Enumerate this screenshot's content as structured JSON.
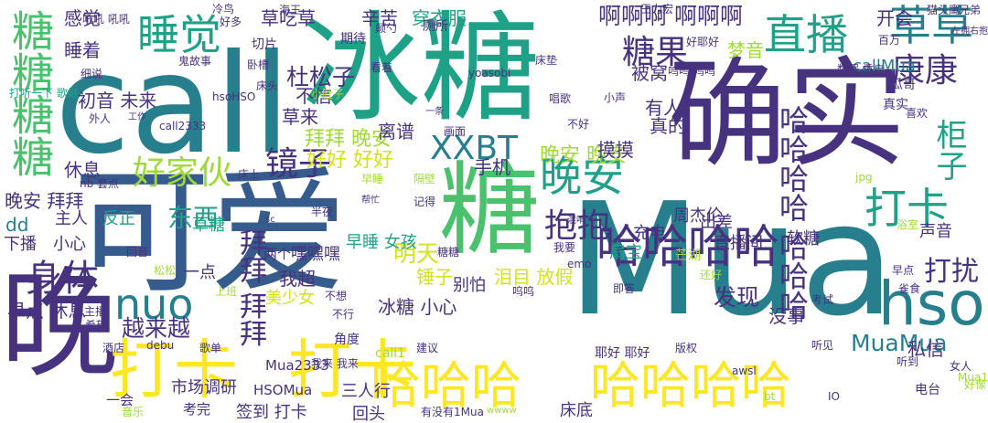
{
  "palette": {
    "dark_purple": "#46327e",
    "blue": "#365c8d",
    "teal": "#277f8e",
    "green_teal": "#1fa187",
    "green": "#4ac16d",
    "light_green": "#a0da39",
    "yellow": "#d2e21b",
    "bright_yellow": "#fde725"
  },
  "words": [
    {
      "text": "冰糖",
      "c": "green_teal"
    },
    {
      "text": "确实",
      "c": "dark_purple"
    },
    {
      "text": "call",
      "c": "teal"
    },
    {
      "text": "可爱",
      "c": "blue"
    },
    {
      "text": "Mua",
      "c": "teal"
    },
    {
      "text": "糖",
      "c": "green"
    },
    {
      "text": "晚",
      "c": "dark_purple"
    },
    {
      "text": "打卡",
      "c": "bright_yellow"
    },
    {
      "text": "打卡",
      "c": "bright_yellow"
    },
    {
      "text": "哈哈哈",
      "c": "bright_yellow"
    },
    {
      "text": "哈哈哈哈",
      "c": "bright_yellow"
    },
    {
      "text": "糖糖糖糖",
      "c": "green"
    },
    {
      "text": "睡觉",
      "c": "green_teal"
    },
    {
      "text": "草草",
      "c": "teal"
    },
    {
      "text": "直播",
      "c": "green_teal"
    },
    {
      "text": "糖果",
      "c": "dark_purple"
    },
    {
      "text": "康康",
      "c": "dark_purple"
    },
    {
      "text": "好家伙",
      "c": "light_green"
    },
    {
      "text": "镜子",
      "c": "dark_purple"
    },
    {
      "text": "晚安",
      "c": "green_teal"
    },
    {
      "text": "XXBT",
      "c": "teal"
    },
    {
      "text": "nuo",
      "c": "teal"
    },
    {
      "text": "hso",
      "c": "teal"
    },
    {
      "text": "哈哈哈哈",
      "c": "dark_purple"
    },
    {
      "text": "打卡",
      "c": "green_teal"
    },
    {
      "text": "抱抱",
      "c": "dark_purple"
    },
    {
      "text": "打扰",
      "c": "dark_purple"
    },
    {
      "text": "身体",
      "c": "dark_purple"
    },
    {
      "text": "拜拜 拜拜",
      "c": "dark_purple"
    },
    {
      "text": "哈哈哈哈 哈哈哈",
      "c": "dark_purple"
    },
    {
      "text": "柜子",
      "c": "green_teal"
    },
    {
      "text": "啊啊啊 啊啊啊",
      "c": "dark_purple"
    },
    {
      "text": "杜松子",
      "c": "dark_purple"
    },
    {
      "text": "越来越",
      "c": "dark_purple"
    },
    {
      "text": "MuaMua",
      "c": "teal"
    },
    {
      "text": "东西",
      "c": "green_teal"
    },
    {
      "text": "发现",
      "c": "dark_purple"
    },
    {
      "text": "明天",
      "c": "yellow"
    },
    {
      "text": "好好 好好",
      "c": "yellow"
    },
    {
      "text": "拜拜 晚安",
      "c": "light_green"
    },
    {
      "text": "晚安 晚安",
      "c": "light_green"
    },
    {
      "text": "草吃草",
      "c": "dark_purple"
    },
    {
      "text": "辛苦",
      "c": "dark_purple"
    },
    {
      "text": "穿衣服",
      "c": "green_teal"
    },
    {
      "text": "感觉",
      "c": "dark_purple"
    },
    {
      "text": "开会",
      "c": "dark_purple"
    },
    {
      "text": "梦音",
      "c": "light_green"
    },
    {
      "text": "不信",
      "c": "dark_purple"
    },
    {
      "text": "睡着",
      "c": "dark_purple"
    },
    {
      "text": "草来",
      "c": "dark_purple"
    },
    {
      "text": "callMua",
      "c": "teal"
    },
    {
      "text": "手机",
      "c": "dark_purple"
    },
    {
      "text": "被窝",
      "c": "dark_purple"
    },
    {
      "text": "休息",
      "c": "dark_purple"
    },
    {
      "text": "晚安 拜拜",
      "c": "dark_purple"
    },
    {
      "text": "摸摸",
      "c": "dark_purple"
    },
    {
      "text": "真的",
      "c": "dark_purple"
    },
    {
      "text": "有人",
      "c": "dark_purple"
    },
    {
      "text": "离谱",
      "c": "dark_purple"
    },
    {
      "text": "初音 未来",
      "c": "dark_purple"
    },
    {
      "text": "早点 休息",
      "c": "dark_purple"
    },
    {
      "text": "冰糖 小心",
      "c": "dark_purple"
    },
    {
      "text": "锤子",
      "c": "yellow"
    },
    {
      "text": "我超",
      "c": "dark_purple"
    },
    {
      "text": "草糖",
      "c": "green_teal"
    },
    {
      "text": "充电",
      "c": "dark_purple"
    },
    {
      "text": "出差",
      "c": "dark_purple"
    },
    {
      "text": "直播间",
      "c": "dark_purple"
    },
    {
      "text": "软糖",
      "c": "dark_purple"
    },
    {
      "text": "声音",
      "c": "dark_purple"
    },
    {
      "text": "没事",
      "c": "dark_purple"
    },
    {
      "text": "私信",
      "c": "dark_purple"
    },
    {
      "text": "泪目 放假",
      "c": "yellow"
    },
    {
      "text": "嘿嘿嘿",
      "c": "dark_purple"
    },
    {
      "text": "别怕",
      "c": "dark_purple"
    },
    {
      "text": "早睡 女孩",
      "c": "green_teal"
    },
    {
      "text": "扇宝",
      "c": "green_teal"
    },
    {
      "text": "周杰伦",
      "c": "dark_purple"
    },
    {
      "text": "主人",
      "c": "dark_purple"
    },
    {
      "text": "反正",
      "c": "green_teal"
    },
    {
      "text": "下播",
      "c": "dark_purple"
    },
    {
      "text": "小心",
      "c": "dark_purple"
    },
    {
      "text": "一点",
      "c": "dark_purple"
    },
    {
      "text": "两个",
      "c": "dark_purple"
    },
    {
      "text": "美少女",
      "c": "yellow"
    },
    {
      "text": "三人行",
      "c": "dark_purple"
    },
    {
      "text": "回头",
      "c": "dark_purple"
    },
    {
      "text": "签到 打卡",
      "c": "dark_purple"
    },
    {
      "text": "市场调研",
      "c": "dark_purple"
    },
    {
      "text": "Mua2333",
      "c": "dark_purple"
    },
    {
      "text": "HSOMua",
      "c": "dark_purple"
    },
    {
      "text": "床底",
      "c": "dark_purple"
    },
    {
      "text": "考完",
      "c": "dark_purple"
    },
    {
      "text": "一会",
      "c": "dark_purple"
    },
    {
      "text": "歌单",
      "c": "dark_purple"
    },
    {
      "text": "酒店",
      "c": "dark_purple"
    },
    {
      "text": "debu",
      "c": "dark_purple"
    },
    {
      "text": "awsl",
      "c": "dark_purple"
    },
    {
      "text": "电台",
      "c": "dark_purple"
    },
    {
      "text": "好像",
      "c": "light_green"
    },
    {
      "text": "女人",
      "c": "dark_purple"
    },
    {
      "text": "Mua1",
      "c": "light_green"
    },
    {
      "text": "听到",
      "c": "dark_purple"
    },
    {
      "text": "听见",
      "c": "dark_purple"
    },
    {
      "text": "耶好 耶好",
      "c": "dark_purple"
    },
    {
      "text": "版权",
      "c": "dark_purple"
    },
    {
      "text": "还好",
      "c": "light_green"
    },
    {
      "text": "考试",
      "c": "dark_purple"
    },
    {
      "text": "早点",
      "c": "dark_purple"
    },
    {
      "text": "即答",
      "c": "dark_purple"
    },
    {
      "text": "芒湖",
      "c": "light_green"
    },
    {
      "text": "我要",
      "c": "dark_purple"
    },
    {
      "text": "糖糖",
      "c": "dark_purple"
    },
    {
      "text": "emo",
      "c": "dark_purple"
    },
    {
      "text": "呜呜",
      "c": "dark_purple"
    },
    {
      "text": "瓜哥",
      "c": "dark_purple"
    },
    {
      "text": "喜欢",
      "c": "dark_purple"
    },
    {
      "text": "真实",
      "c": "dark_purple"
    },
    {
      "text": "百万",
      "c": "dark_purple"
    },
    {
      "text": "数据 重启",
      "c": "dark_purple"
    },
    {
      "text": "呜呜 呜呜",
      "c": "dark_purple"
    },
    {
      "text": "小声",
      "c": "dark_purple"
    },
    {
      "text": "唱歌",
      "c": "dark_purple"
    },
    {
      "text": "好耶好",
      "c": "dark_purple"
    },
    {
      "text": "王力宏",
      "c": "dark_purple"
    },
    {
      "text": "兄弟",
      "c": "dark_purple"
    },
    {
      "text": "左拥右抱",
      "c": "dark_purple"
    },
    {
      "text": "猫头鹰",
      "c": "dark_purple"
    },
    {
      "text": "海王",
      "c": "dark_purple"
    },
    {
      "text": "冷鸟",
      "c": "dark_purple"
    },
    {
      "text": "好多",
      "c": "dark_purple"
    },
    {
      "text": "颠勺",
      "c": "dark_purple"
    },
    {
      "text": "厕所",
      "c": "dark_purple"
    },
    {
      "text": "期待",
      "c": "dark_purple"
    },
    {
      "text": "切片",
      "c": "dark_purple"
    },
    {
      "text": "卧槽",
      "c": "dark_purple"
    },
    {
      "text": "看着",
      "c": "dark_purple"
    },
    {
      "text": "床头",
      "c": "dark_purple"
    },
    {
      "text": "床垫",
      "c": "dark_purple"
    },
    {
      "text": "yoasobi",
      "c": "dark_purple"
    },
    {
      "text": "鬼故事",
      "c": "dark_purple"
    },
    {
      "text": "细说",
      "c": "dark_purple"
    },
    {
      "text": "吼吼 吼吼",
      "c": "dark_purple"
    },
    {
      "text": "小肚子",
      "c": "light_green"
    },
    {
      "text": "打听一下 歌姬",
      "c": "green_teal"
    },
    {
      "text": "外人",
      "c": "dark_purple"
    },
    {
      "text": "工作",
      "c": "dark_purple"
    },
    {
      "text": "call2333",
      "c": "dark_purple"
    },
    {
      "text": "一条",
      "c": "dark_purple"
    },
    {
      "text": "画面",
      "c": "dark_purple"
    },
    {
      "text": "不好",
      "c": "dark_purple"
    },
    {
      "text": "hsoHSO",
      "c": "dark_purple"
    },
    {
      "text": "床上",
      "c": "dark_purple"
    },
    {
      "text": "早睡",
      "c": "light_green"
    },
    {
      "text": "隔壁",
      "c": "light_green"
    },
    {
      "text": "记得",
      "c": "dark_purple"
    },
    {
      "text": "帮忙",
      "c": "dark_purple"
    },
    {
      "text": "混响",
      "c": "dark_purple"
    },
    {
      "text": "nb 套点",
      "c": "dark_purple"
    },
    {
      "text": "dd",
      "c": "teal"
    },
    {
      "text": "半夜",
      "c": "dark_purple"
    },
    {
      "text": "sc",
      "c": "dark_purple"
    },
    {
      "text": "回音",
      "c": "dark_purple"
    },
    {
      "text": "松松",
      "c": "light_green"
    },
    {
      "text": "不想",
      "c": "dark_purple"
    },
    {
      "text": "上班",
      "c": "light_green"
    },
    {
      "text": "角度",
      "c": "dark_purple"
    },
    {
      "text": "建议",
      "c": "dark_purple"
    },
    {
      "text": "call1",
      "c": "light_green"
    },
    {
      "text": "我来 我来",
      "c": "dark_purple"
    },
    {
      "text": "有没有1Mua",
      "c": "dark_purple"
    },
    {
      "text": "wwww",
      "c": "light_green"
    },
    {
      "text": "IO",
      "c": "dark_purple"
    },
    {
      "text": "bt",
      "c": "light_green"
    },
    {
      "text": "jpg",
      "c": "light_green"
    },
    {
      "text": "浴室",
      "c": "light_green"
    },
    {
      "text": "雀食",
      "c": "dark_purple"
    },
    {
      "text": "音乐",
      "c": "light_green"
    },
    {
      "text": "主播",
      "c": "dark_purple"
    },
    {
      "text": "希望",
      "c": "dark_purple"
    },
    {
      "text": "不行",
      "c": "dark_purple"
    },
    {
      "text": "草打",
      "c": "dark_purple"
    }
  ]
}
